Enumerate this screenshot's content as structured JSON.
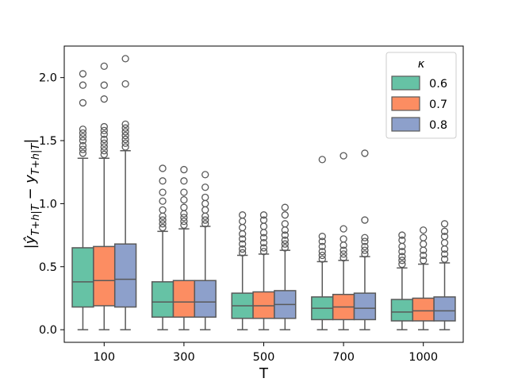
{
  "chart_data": {
    "type": "box",
    "xlabel": "T",
    "ylabel": "|ŷ_{T+h|T} − y_{T+h|T}|",
    "ylim": [
      -0.1,
      2.25
    ],
    "yticks": [
      0.0,
      0.5,
      1.0,
      1.5,
      2.0
    ],
    "ytick_labels": [
      "0.0",
      "0.5",
      "1.0",
      "1.5",
      "2.0"
    ],
    "categories": [
      "100",
      "300",
      "500",
      "700",
      "1000"
    ],
    "legend": {
      "title": "κ",
      "position": "top-right",
      "entries": [
        "0.6",
        "0.7",
        "0.8"
      ]
    },
    "series": [
      {
        "name": "0.6",
        "color": "#66c2a5",
        "boxes": [
          {
            "min": 0.0,
            "q1": 0.18,
            "median": 0.38,
            "q3": 0.65,
            "max": 1.36,
            "outliers": [
              1.4,
              1.43,
              1.46,
              1.5,
              1.53,
              1.56,
              1.59,
              1.8,
              1.94,
              2.03
            ]
          },
          {
            "min": 0.0,
            "q1": 0.1,
            "median": 0.22,
            "q3": 0.38,
            "max": 0.78,
            "outliers": [
              0.81,
              0.84,
              0.87,
              0.9,
              0.95,
              1.02,
              1.09,
              1.18,
              1.28
            ]
          },
          {
            "min": 0.0,
            "q1": 0.09,
            "median": 0.19,
            "q3": 0.29,
            "max": 0.59,
            "outliers": [
              0.61,
              0.64,
              0.68,
              0.72,
              0.76,
              0.81,
              0.86,
              0.91
            ]
          },
          {
            "min": 0.0,
            "q1": 0.08,
            "median": 0.17,
            "q3": 0.26,
            "max": 0.54,
            "outliers": [
              0.56,
              0.59,
              0.62,
              0.66,
              0.7,
              0.74,
              1.35
            ]
          },
          {
            "min": 0.0,
            "q1": 0.07,
            "median": 0.14,
            "q3": 0.24,
            "max": 0.49,
            "outliers": [
              0.52,
              0.55,
              0.58,
              0.62,
              0.66,
              0.71,
              0.75
            ]
          }
        ]
      },
      {
        "name": "0.7",
        "color": "#fc8d62",
        "boxes": [
          {
            "min": 0.0,
            "q1": 0.19,
            "median": 0.39,
            "q3": 0.66,
            "max": 1.36,
            "outliers": [
              1.39,
              1.42,
              1.45,
              1.48,
              1.51,
              1.55,
              1.58,
              1.61,
              1.83,
              1.94,
              2.09
            ]
          },
          {
            "min": 0.0,
            "q1": 0.1,
            "median": 0.22,
            "q3": 0.39,
            "max": 0.8,
            "outliers": [
              0.83,
              0.86,
              0.89,
              0.92,
              0.97,
              1.03,
              1.09,
              1.18,
              1.27
            ]
          },
          {
            "min": 0.0,
            "q1": 0.09,
            "median": 0.19,
            "q3": 0.3,
            "max": 0.6,
            "outliers": [
              0.62,
              0.65,
              0.69,
              0.73,
              0.77,
              0.82,
              0.87,
              0.91
            ]
          },
          {
            "min": 0.0,
            "q1": 0.08,
            "median": 0.18,
            "q3": 0.28,
            "max": 0.55,
            "outliers": [
              0.57,
              0.6,
              0.63,
              0.67,
              0.72,
              0.8,
              1.38
            ]
          },
          {
            "min": 0.0,
            "q1": 0.07,
            "median": 0.15,
            "q3": 0.25,
            "max": 0.52,
            "outliers": [
              0.55,
              0.59,
              0.63,
              0.68,
              0.73,
              0.79
            ]
          }
        ]
      },
      {
        "name": "0.8",
        "color": "#8da0cb",
        "boxes": [
          {
            "min": 0.0,
            "q1": 0.18,
            "median": 0.4,
            "q3": 0.68,
            "max": 1.42,
            "outliers": [
              1.45,
              1.48,
              1.51,
              1.54,
              1.57,
              1.6,
              1.63,
              1.95,
              2.15
            ]
          },
          {
            "min": 0.0,
            "q1": 0.1,
            "median": 0.22,
            "q3": 0.39,
            "max": 0.82,
            "outliers": [
              0.84,
              0.87,
              0.9,
              0.95,
              1.0,
              1.05,
              1.13,
              1.23
            ]
          },
          {
            "min": 0.0,
            "q1": 0.09,
            "median": 0.2,
            "q3": 0.31,
            "max": 0.63,
            "outliers": [
              0.65,
              0.68,
              0.71,
              0.75,
              0.79,
              0.84,
              0.91,
              0.97
            ]
          },
          {
            "min": 0.0,
            "q1": 0.08,
            "median": 0.17,
            "q3": 0.29,
            "max": 0.58,
            "outliers": [
              0.6,
              0.63,
              0.66,
              0.7,
              0.73,
              0.87,
              1.4
            ]
          },
          {
            "min": 0.0,
            "q1": 0.07,
            "median": 0.15,
            "q3": 0.26,
            "max": 0.53,
            "outliers": [
              0.56,
              0.6,
              0.64,
              0.69,
              0.74,
              0.78,
              0.84
            ]
          }
        ]
      }
    ]
  }
}
